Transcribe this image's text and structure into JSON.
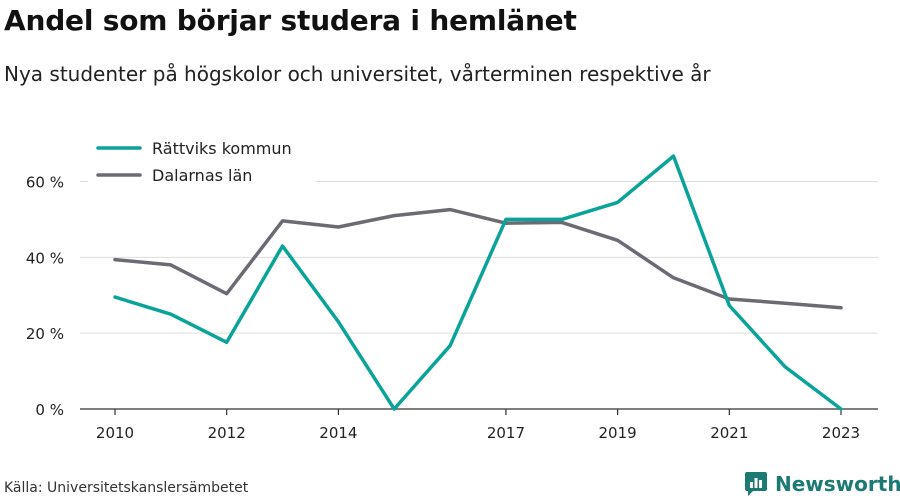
{
  "header": {
    "title": "Andel som börjar studera i hemlänet",
    "subtitle": "Nya studenter på högskolor och universitet, vårterminen respektive år"
  },
  "footer": {
    "source": "Källa: Universitetskanslersämbetet",
    "brand": "Newsworthy"
  },
  "colors": {
    "accent": "#0aa39a",
    "secondary": "#6b6b74",
    "brand": "#1b7a74"
  },
  "icons": {
    "brand": "bar-chart-speech-bubble-icon"
  },
  "chart_data": {
    "type": "line",
    "title": "Andel som börjar studera i hemlänet",
    "subtitle": "Nya studenter på högskolor och universitet, vårterminen respektive år",
    "xlabel": "",
    "ylabel": "",
    "x": [
      2010,
      2011,
      2012,
      2013,
      2014,
      2015,
      2016,
      2017,
      2018,
      2019,
      2020,
      2021,
      2022,
      2023
    ],
    "xticks": [
      2010,
      2012,
      2014,
      2017,
      2019,
      2021,
      2023
    ],
    "xticklabels": [
      "2010",
      "2012",
      "2014",
      "2017",
      "2019",
      "2021",
      "2023"
    ],
    "xlim": [
      2010,
      2023
    ],
    "yticks": [
      0,
      20,
      40,
      60
    ],
    "yticklabels": [
      "0 %",
      "20 %",
      "40 %",
      "60 %"
    ],
    "ylim": [
      0,
      70
    ],
    "grid": "horizontal",
    "legend": "top-left",
    "series": [
      {
        "name": "Rättviks kommun",
        "color": "#0aa39a",
        "values": [
          29.5,
          25.0,
          17.6,
          43.0,
          23.0,
          0.0,
          16.7,
          50.0,
          50.0,
          54.5,
          66.7,
          27.3,
          11.1,
          0.0
        ]
      },
      {
        "name": "Dalarnas län",
        "color": "#6b6b74",
        "values": [
          39.4,
          38.0,
          30.4,
          49.6,
          48.0,
          51.0,
          52.6,
          49.0,
          49.2,
          44.5,
          34.6,
          29.0,
          27.9,
          26.7
        ]
      }
    ]
  }
}
